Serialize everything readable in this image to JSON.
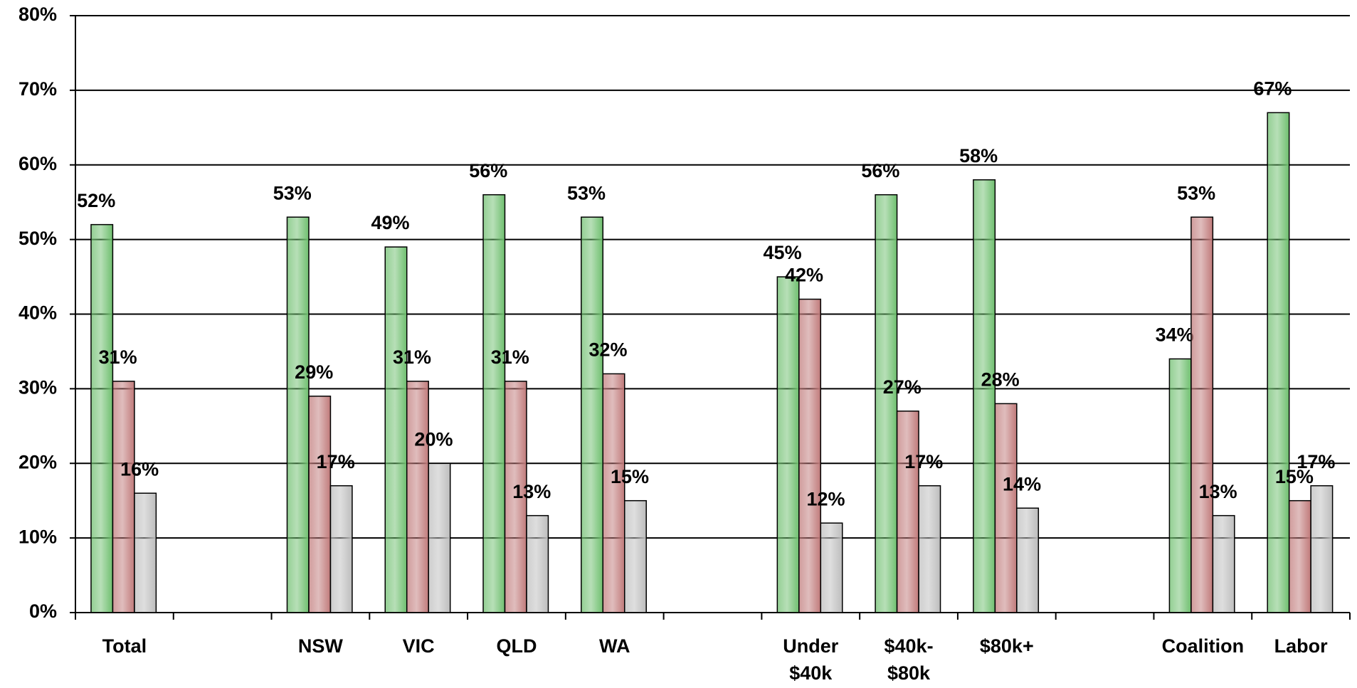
{
  "chart_data": {
    "type": "bar",
    "categories": [
      "Total",
      null,
      "NSW",
      "VIC",
      "QLD",
      "WA",
      null,
      "Under $40k",
      "$40k-$80k",
      "$80k+",
      null,
      "Coalition",
      "Labor"
    ],
    "series": [
      {
        "color": "#6fbf6f",
        "values": [
          52,
          null,
          53,
          49,
          56,
          53,
          null,
          45,
          56,
          58,
          null,
          34,
          67
        ],
        "value_labels": [
          "52%",
          null,
          "53%",
          "49%",
          "56%",
          "53%",
          null,
          "45%",
          "56%",
          "58%",
          null,
          "34%",
          "67%"
        ]
      },
      {
        "color": "#c07a7a",
        "values": [
          31,
          null,
          29,
          31,
          31,
          32,
          null,
          42,
          27,
          28,
          null,
          53,
          15
        ],
        "value_labels": [
          "31%",
          null,
          "29%",
          "31%",
          "31%",
          "32%",
          null,
          "42%",
          "27%",
          "28%",
          null,
          "53%",
          "15%"
        ]
      },
      {
        "color": "#bdbdbd",
        "values": [
          16,
          null,
          17,
          20,
          13,
          15,
          null,
          12,
          17,
          14,
          null,
          13,
          17
        ],
        "value_labels": [
          "16%",
          null,
          "17%",
          "20%",
          "13%",
          "15%",
          null,
          "12%",
          "17%",
          "14%",
          null,
          "13%",
          "17%"
        ]
      }
    ],
    "ylim": [
      0,
      80
    ],
    "yticks": [
      {
        "value": 0,
        "label": "0%"
      },
      {
        "value": 10,
        "label": "10%"
      },
      {
        "value": 20,
        "label": "20%"
      },
      {
        "value": 30,
        "label": "30%"
      },
      {
        "value": 40,
        "label": "40%"
      },
      {
        "value": 50,
        "label": "50%"
      },
      {
        "value": 60,
        "label": "60%"
      },
      {
        "value": 70,
        "label": "70%"
      },
      {
        "value": 80,
        "label": "80%"
      }
    ],
    "grid": true
  }
}
